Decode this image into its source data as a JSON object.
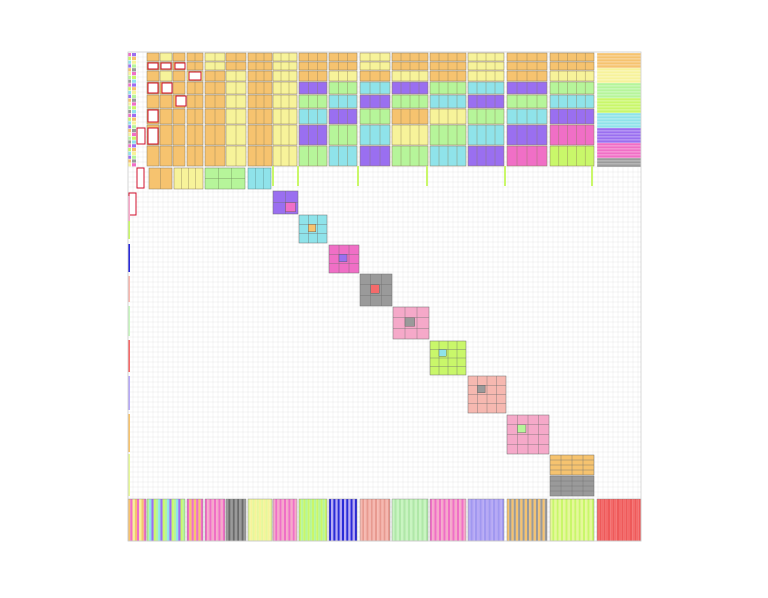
{
  "figure": {
    "kind": "sparse matrix block partition",
    "labels": []
  },
  "palette": {
    "orange": "#f6c36f",
    "yellow": "#f7f39a",
    "green": "#b6f59a",
    "cyan": "#8fe3ea",
    "purple": "#9a6ff0",
    "magenta": "#f06fc6",
    "gray": "#9a9a9a",
    "pink": "#f5a9c9",
    "lime": "#c9f76a",
    "salmon": "#f6b8b0",
    "light_green": "#c9f5c1",
    "red": "#f46a6a",
    "lavender": "#b7a9f5",
    "pale_lime": "#e6f79a",
    "outline": "#d0102c",
    "grid": "#e3e3e3"
  }
}
